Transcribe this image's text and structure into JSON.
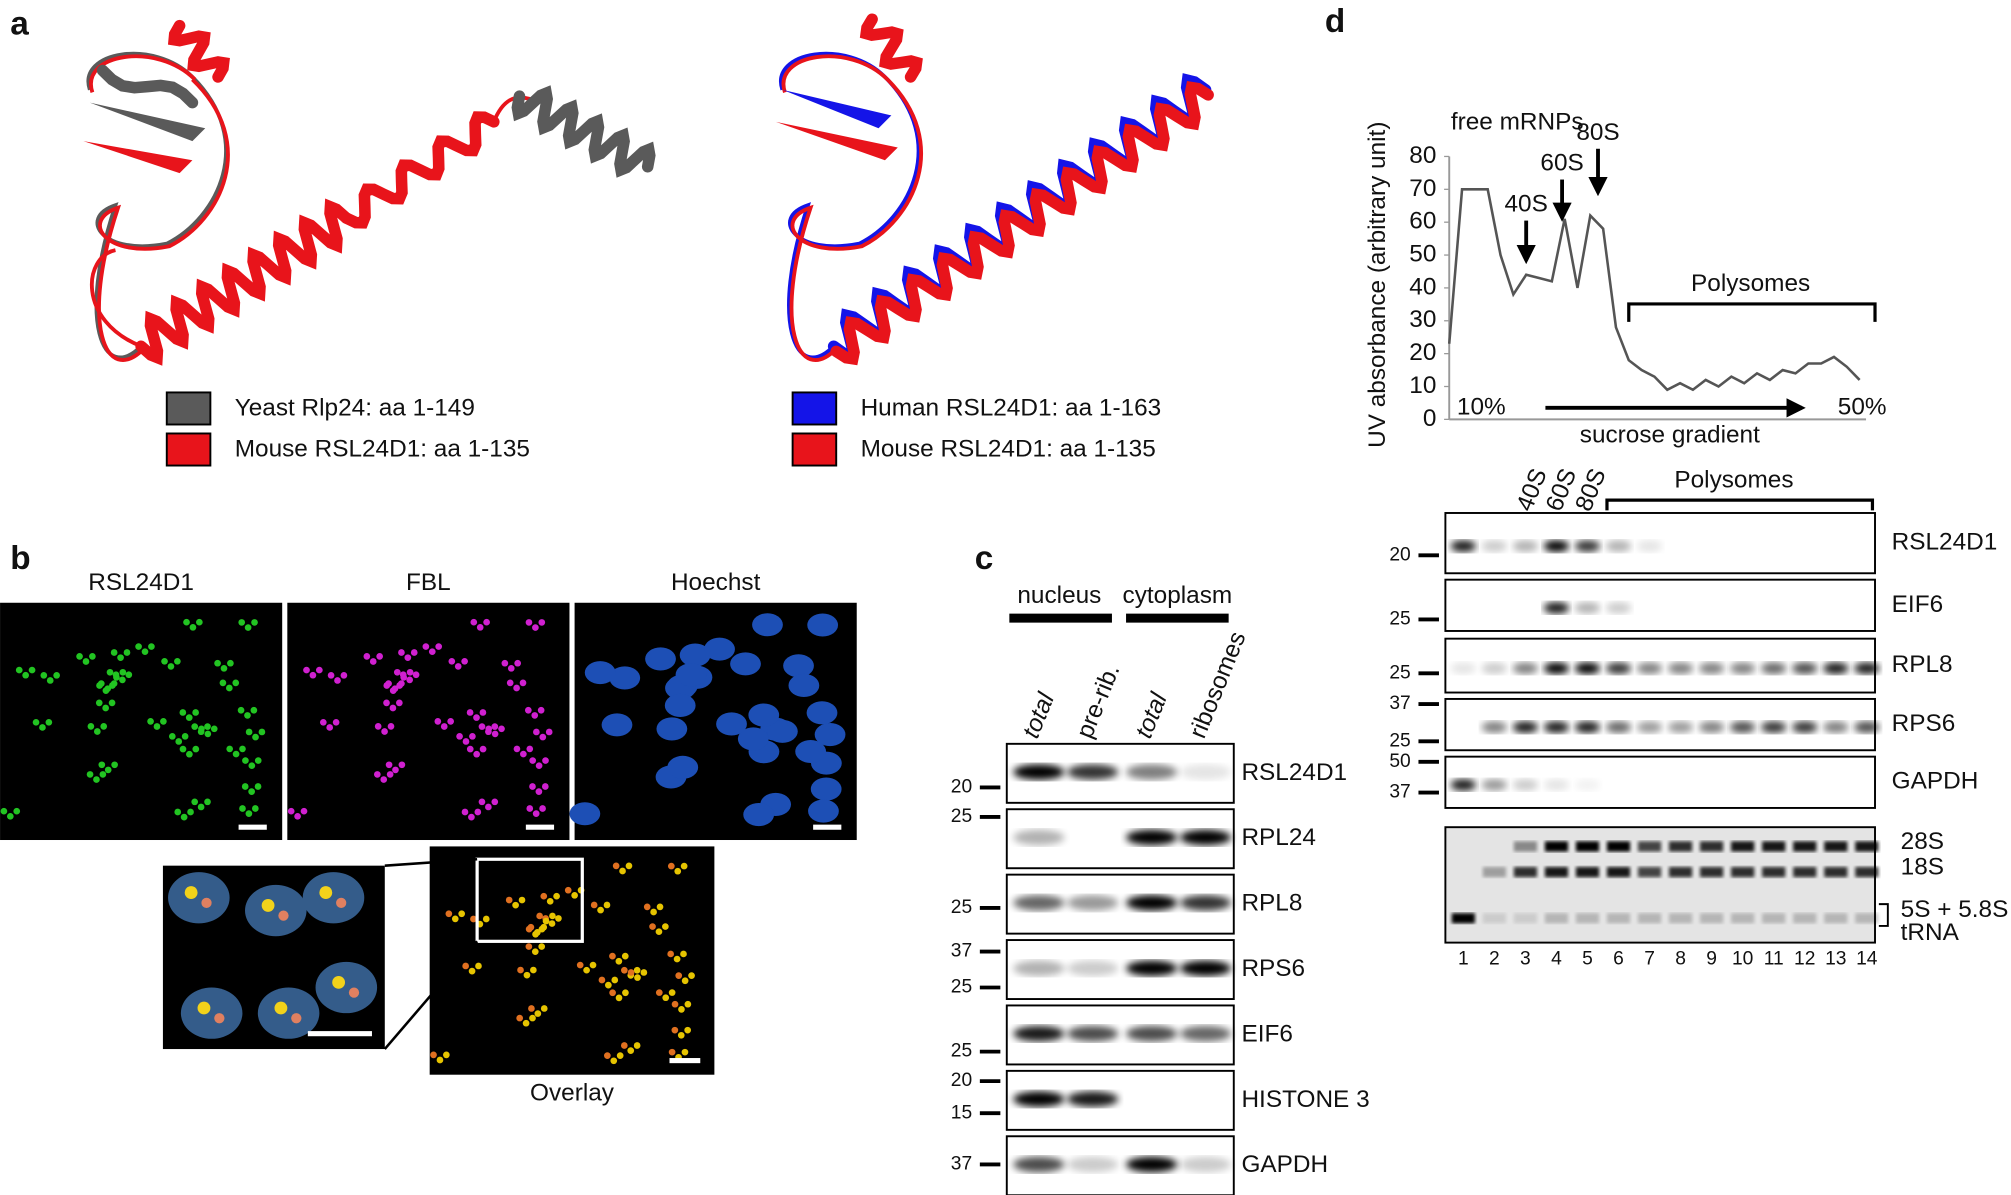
{
  "panels": {
    "a": {
      "label": "a",
      "legend_left": [
        {
          "text": "Yeast Rlp24: aa 1-149",
          "color": "#5a5a5a"
        },
        {
          "text": "Mouse RSL24D1: aa 1-135",
          "color": "#e8141b"
        }
      ],
      "legend_right": [
        {
          "text": "Human RSL24D1: aa 1-163",
          "color": "#1414e8"
        },
        {
          "text": "Mouse RSL24D1: aa 1-135",
          "color": "#e8141b"
        }
      ]
    },
    "b": {
      "label": "b",
      "channels": [
        "RSL24D1",
        "FBL",
        "Hoechst"
      ],
      "overlay": "Overlay"
    },
    "c": {
      "label": "c",
      "groups": [
        "nucleus",
        "cytoplasm"
      ],
      "columns": [
        "total",
        "pre-rib.",
        "total",
        "ribosomes"
      ],
      "blots": [
        {
          "name": "RSL24D1",
          "markers": [
            20
          ]
        },
        {
          "name": "RPL24",
          "markers": [
            25
          ]
        },
        {
          "name": "RPL8",
          "markers": [
            25
          ]
        },
        {
          "name": "RPS6",
          "markers": [
            37,
            25
          ]
        },
        {
          "name": "EIF6",
          "markers": [
            25
          ]
        },
        {
          "name": "HISTONE 3",
          "markers": [
            20,
            15
          ]
        },
        {
          "name": "GAPDH",
          "markers": [
            37
          ]
        }
      ]
    },
    "d": {
      "label": "d",
      "fractions": [
        "40S",
        "60S",
        "80S"
      ],
      "polysomes": "Polysomes",
      "blots": [
        {
          "name": "RSL24D1",
          "markers": [
            20
          ]
        },
        {
          "name": "EIF6",
          "markers": [
            25
          ]
        },
        {
          "name": "RPL8",
          "markers": [
            25
          ]
        },
        {
          "name": "RPS6",
          "markers": [
            37,
            25
          ]
        },
        {
          "name": "GAPDH",
          "markers": [
            50,
            37
          ]
        }
      ],
      "gel": [
        "28S",
        "18S",
        "5S + 5.8S",
        "tRNA"
      ],
      "lanes": [
        1,
        2,
        3,
        4,
        5,
        6,
        7,
        8,
        9,
        10,
        11,
        12,
        13,
        14
      ]
    }
  },
  "chart_data": {
    "type": "line",
    "y_label": "UV absorbance (arbitrary unit)",
    "ylim": [
      0,
      80
    ],
    "yticks": [
      0,
      10,
      20,
      30,
      40,
      50,
      60,
      70,
      80
    ],
    "color": "#555555",
    "values": [
      23,
      70,
      70,
      70,
      50,
      38,
      44,
      43,
      42,
      61,
      40,
      62,
      58,
      28,
      18,
      15,
      13,
      9,
      11,
      9,
      12,
      10,
      13,
      11,
      14,
      12,
      15,
      14,
      17,
      17,
      19,
      16,
      12
    ],
    "annotations": [
      "free mRNPs",
      "40S",
      "60S",
      "80S"
    ],
    "bracket_label": "Polysomes",
    "gradient_start": "10%",
    "gradient_end": "50%",
    "x_label": "sucrose gradient"
  }
}
